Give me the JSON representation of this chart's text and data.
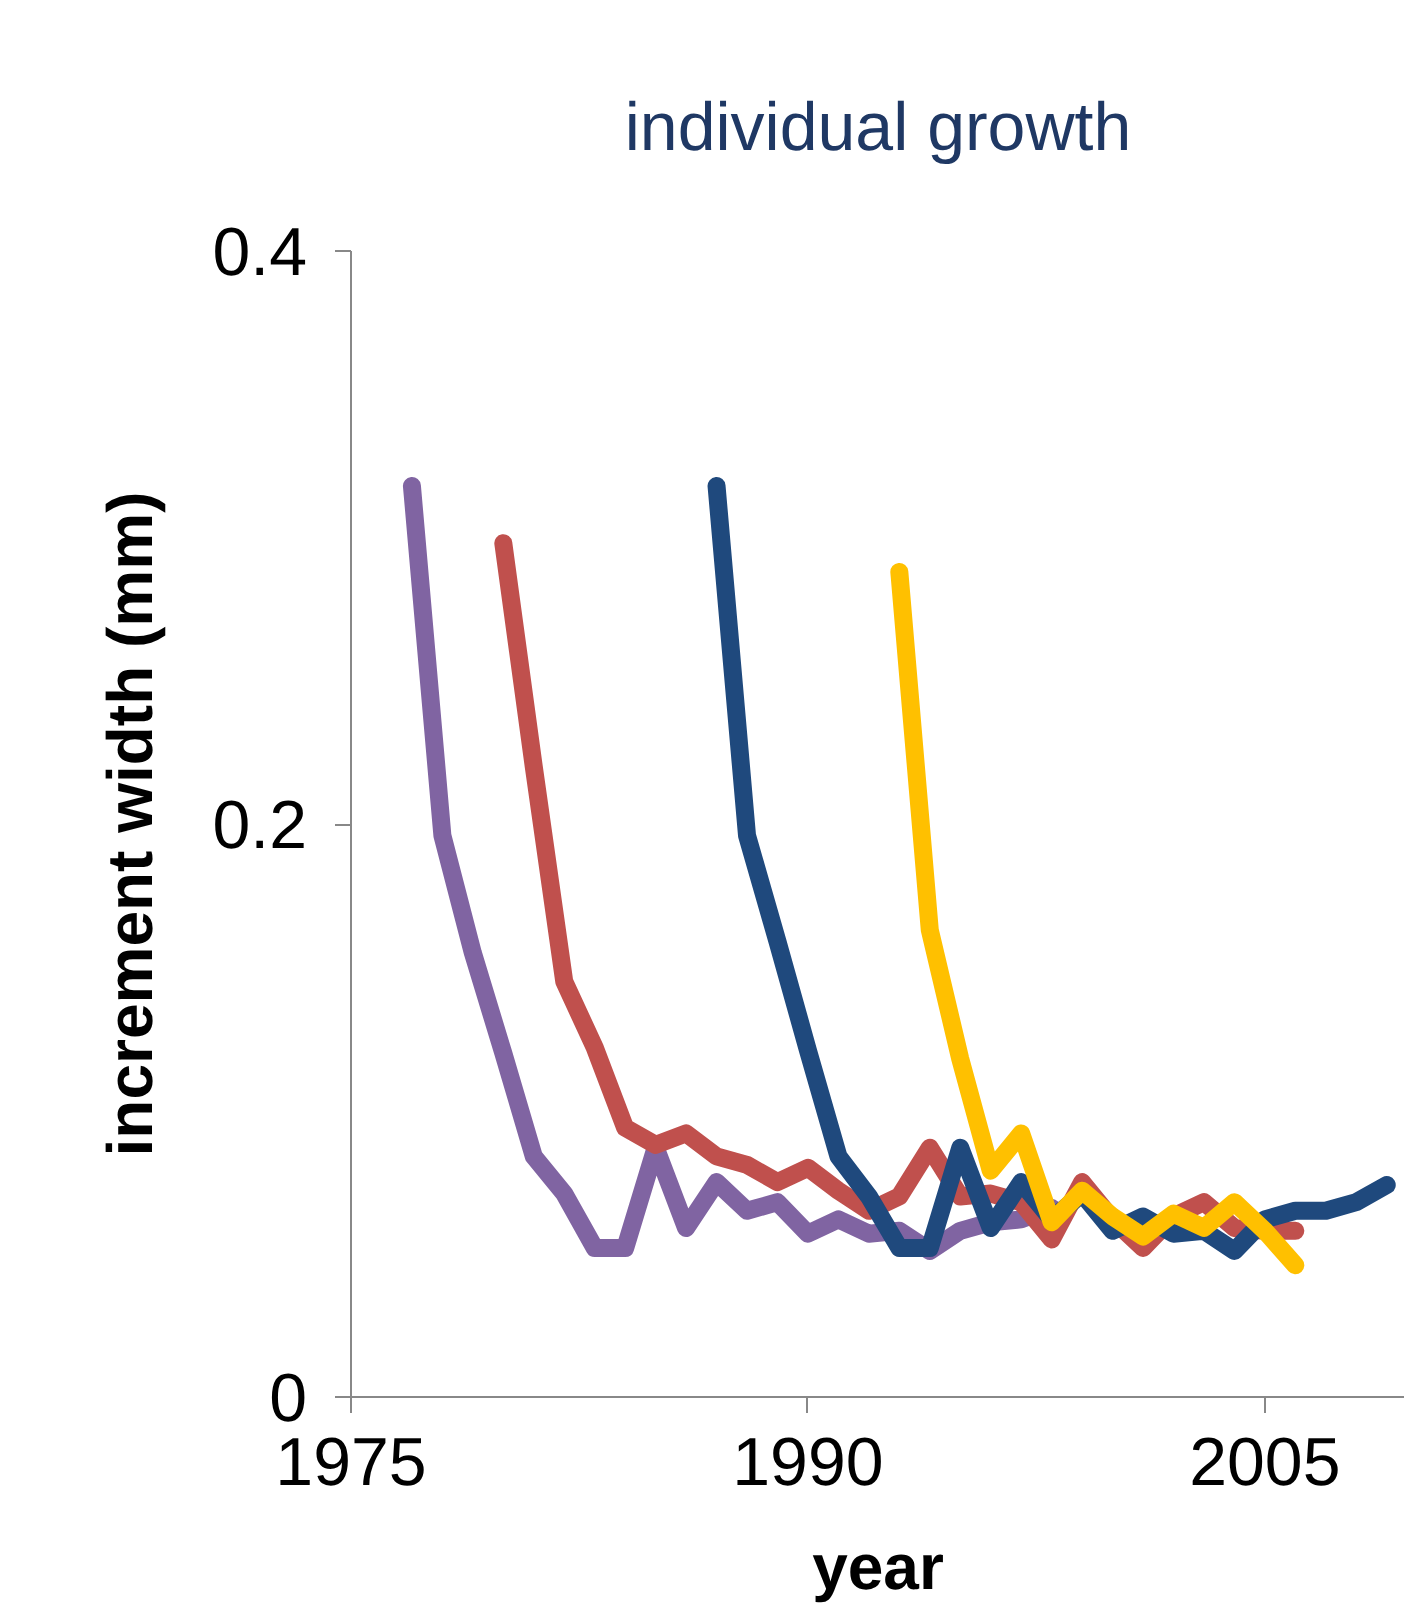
{
  "chart_data": {
    "type": "line",
    "title": "individual growth",
    "xlabel": "year",
    "ylabel": "increment width (mm)",
    "xlim": [
      1975,
      2009.6
    ],
    "xticks": [
      1975,
      1990,
      2005
    ],
    "ylim": [
      0,
      0.4
    ],
    "yticks": [
      0,
      {
        "value": 0.2,
        "label": "0.2"
      },
      {
        "value": 0.4,
        "label": "0.4"
      }
    ],
    "grid": false,
    "marker": "none",
    "line_style": "solid",
    "series": [
      {
        "color": "#8064a2",
        "x": [
          1977,
          1978,
          1979,
          1980,
          1981,
          1982,
          1983,
          1984,
          1985,
          1986,
          1987,
          1988,
          1989,
          1990,
          1991,
          1992,
          1993,
          1994,
          1995,
          1996,
          1997,
          1998
        ],
        "values": [
          0.318,
          0.196,
          0.155,
          0.12,
          0.084,
          0.071,
          0.052,
          0.052,
          0.087,
          0.059,
          0.075,
          0.065,
          0.068,
          0.057,
          0.062,
          0.057,
          0.058,
          0.051,
          0.058,
          0.061,
          0.062,
          0.066
        ]
      },
      {
        "color": "#c0504d",
        "x": [
          1980,
          1981,
          1982,
          1983,
          1984,
          1985,
          1986,
          1987,
          1988,
          1989,
          1990,
          1991,
          1992,
          1993,
          1994,
          1995,
          1996,
          1997,
          1998,
          1999,
          2000,
          2001,
          2002,
          2003,
          2004,
          2005,
          2006
        ],
        "values": [
          0.298,
          0.22,
          0.145,
          0.122,
          0.094,
          0.088,
          0.092,
          0.084,
          0.081,
          0.075,
          0.08,
          0.072,
          0.065,
          0.07,
          0.087,
          0.07,
          0.071,
          0.068,
          0.055,
          0.075,
          0.062,
          0.052,
          0.063,
          0.068,
          0.059,
          0.058,
          0.058
        ]
      },
      {
        "color": "#1f497d",
        "x": [
          1987,
          1988,
          1989,
          1990,
          1991,
          1992,
          1993,
          1994,
          1995,
          1996,
          1997,
          1998,
          1999,
          2000,
          2001,
          2002,
          2003,
          2004,
          2005,
          2006,
          2007,
          2008,
          2009
        ],
        "values": [
          0.318,
          0.196,
          0.159,
          0.121,
          0.084,
          0.07,
          0.052,
          0.052,
          0.087,
          0.059,
          0.075,
          0.062,
          0.071,
          0.058,
          0.063,
          0.057,
          0.058,
          0.051,
          0.062,
          0.065,
          0.065,
          0.068,
          0.074
        ]
      },
      {
        "color": "#ffc000",
        "x": [
          1993,
          1994,
          1995,
          1996,
          1997,
          1998,
          1999,
          2000,
          2001,
          2002,
          2003,
          2004,
          2005,
          2006
        ],
        "values": [
          0.288,
          0.163,
          0.118,
          0.079,
          0.092,
          0.061,
          0.072,
          0.063,
          0.056,
          0.064,
          0.059,
          0.068,
          0.058,
          0.046
        ]
      }
    ]
  }
}
